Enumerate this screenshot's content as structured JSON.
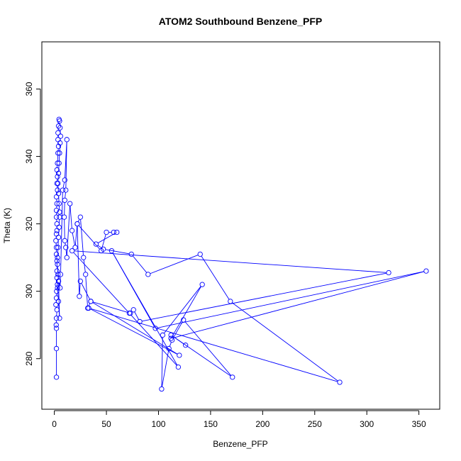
{
  "chart_data": {
    "type": "line",
    "title": "ATOM2 Southbound Benzene_PFP",
    "xlabel": "Benzene_PFP",
    "ylabel": "Theta (K)",
    "xlim": [
      -12,
      370
    ],
    "ylim": [
      265,
      374
    ],
    "xticks": [
      0,
      50,
      100,
      150,
      200,
      250,
      300,
      350
    ],
    "yticks": [
      280,
      300,
      320,
      340,
      360
    ],
    "grid": false,
    "legend": "none",
    "series_color": "#0000ff",
    "markers": "open-circle",
    "points": [
      [
        2,
        274.5
      ],
      [
        2,
        283
      ],
      [
        2,
        289
      ],
      [
        1.8,
        290
      ],
      [
        2,
        292
      ],
      [
        2.5,
        294.5
      ],
      [
        1.5,
        296
      ],
      [
        2,
        298
      ],
      [
        2.2,
        300
      ],
      [
        3,
        302
      ],
      [
        4,
        303
      ],
      [
        5,
        292
      ],
      [
        4,
        297
      ],
      [
        3,
        301
      ],
      [
        2.5,
        304
      ],
      [
        2.5,
        306
      ],
      [
        2.5,
        309
      ],
      [
        2,
        311
      ],
      [
        2,
        313
      ],
      [
        1.5,
        315
      ],
      [
        2,
        317
      ],
      [
        2.5,
        318
      ],
      [
        2.5,
        320
      ],
      [
        2,
        322
      ],
      [
        2,
        324
      ],
      [
        2.5,
        326
      ],
      [
        2,
        328
      ],
      [
        3,
        330
      ],
      [
        2.5,
        332
      ],
      [
        3,
        334
      ],
      [
        2.5,
        336
      ],
      [
        3,
        338
      ],
      [
        3.5,
        341
      ],
      [
        4,
        343
      ],
      [
        3.5,
        345
      ],
      [
        3.5,
        347
      ],
      [
        4,
        349
      ],
      [
        4.5,
        351
      ],
      [
        5,
        350.5
      ],
      [
        5.5,
        348.5
      ],
      [
        6,
        346
      ],
      [
        5.5,
        344
      ],
      [
        5,
        341
      ],
      [
        4.5,
        338
      ],
      [
        4,
        335
      ],
      [
        3.5,
        332
      ],
      [
        4,
        329
      ],
      [
        4.5,
        326
      ],
      [
        5,
        323.5
      ],
      [
        5,
        322
      ],
      [
        4.5,
        319
      ],
      [
        4,
        316
      ],
      [
        3.5,
        313
      ],
      [
        3,
        310
      ],
      [
        3,
        308
      ],
      [
        3.5,
        305
      ],
      [
        4,
        303
      ],
      [
        5.5,
        301
      ],
      [
        6,
        305
      ],
      [
        8,
        330
      ],
      [
        10,
        333
      ],
      [
        12,
        345
      ],
      [
        11,
        330
      ],
      [
        10,
        327
      ],
      [
        9.5,
        322
      ],
      [
        10,
        315
      ],
      [
        11,
        313
      ],
      [
        12,
        310
      ],
      [
        15,
        326
      ],
      [
        17,
        318
      ],
      [
        20,
        313
      ],
      [
        22,
        320
      ],
      [
        25,
        322
      ],
      [
        28,
        310
      ],
      [
        30,
        305
      ],
      [
        32,
        295
      ],
      [
        35,
        297
      ],
      [
        25,
        303
      ],
      [
        24,
        298.5
      ],
      [
        22,
        320
      ],
      [
        45,
        312
      ],
      [
        50,
        317.5
      ],
      [
        57,
        317.5
      ],
      [
        60,
        317.5
      ],
      [
        40,
        314
      ],
      [
        47,
        312.5
      ],
      [
        74,
        311
      ],
      [
        90,
        305
      ],
      [
        140,
        311
      ],
      [
        169,
        297
      ],
      [
        274,
        273
      ],
      [
        33,
        295
      ],
      [
        120,
        281
      ],
      [
        35,
        297
      ],
      [
        73,
        293.5
      ],
      [
        76,
        294.5
      ],
      [
        82,
        291
      ],
      [
        321,
        305.5
      ],
      [
        17,
        312
      ],
      [
        72,
        293.5
      ],
      [
        119,
        277.5
      ],
      [
        55,
        312
      ],
      [
        97,
        289
      ],
      [
        357,
        306
      ],
      [
        112,
        286
      ],
      [
        142,
        302
      ],
      [
        104,
        287
      ],
      [
        103,
        271
      ],
      [
        110,
        283
      ],
      [
        113,
        285.5
      ],
      [
        124,
        291.5
      ],
      [
        171,
        274.5
      ],
      [
        112,
        287
      ],
      [
        126,
        284
      ]
    ]
  }
}
